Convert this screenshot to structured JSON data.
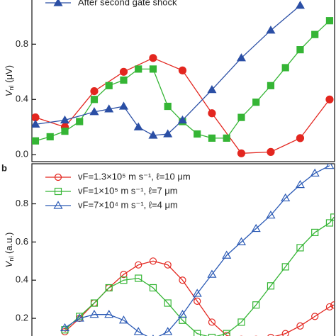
{
  "chart_data": [
    {
      "type": "line",
      "marker_fill": "filled",
      "ylabel": [
        "V",
        "nl",
        " (μV)"
      ],
      "xlim": [
        -0.12,
        10.17
      ],
      "ylim": [
        -0.05,
        1.13
      ],
      "yticks": [
        {
          "value": 0,
          "label": "0.0"
        },
        0.4,
        0.8
      ],
      "legend": "upper left",
      "series": [
        {
          "name": null,
          "color": "#e3261f",
          "marker": "circle",
          "x": [
            0,
            1,
            2,
            3,
            4,
            5,
            6,
            7,
            8,
            9,
            10
          ],
          "values": [
            0.27,
            0.2,
            0.46,
            0.6,
            0.7,
            0.61,
            0.3,
            0.01,
            0.02,
            0.12,
            0.4
          ]
        },
        {
          "name": null,
          "color": "#35b535",
          "marker": "square",
          "x": [
            0,
            0.5,
            1,
            1.5,
            2,
            2.5,
            3,
            3.5,
            4,
            4.5,
            5,
            5.5,
            6,
            6.5,
            7,
            7.5,
            8,
            8.5,
            9,
            9.5,
            10
          ],
          "values": [
            0.1,
            0.13,
            0.17,
            0.24,
            0.4,
            0.5,
            0.54,
            0.62,
            0.62,
            0.35,
            0.24,
            0.15,
            0.12,
            0.12,
            0.27,
            0.38,
            0.5,
            0.63,
            0.76,
            0.87,
            0.97
          ]
        },
        {
          "name": "After second gate shock",
          "color": "#2b4fa5",
          "marker": "triangle",
          "x": [
            0,
            1,
            2,
            2.5,
            3,
            3.5,
            4,
            4.5,
            5,
            6,
            7,
            8,
            9
          ],
          "values": [
            0.22,
            0.25,
            0.31,
            0.33,
            0.35,
            0.2,
            0.14,
            0.15,
            0.25,
            0.47,
            0.7,
            0.9,
            1.08
          ]
        }
      ]
    },
    {
      "type": "line",
      "marker_fill": "open",
      "panel": "b",
      "ylabel": [
        "V",
        "nl",
        " (a.u.)"
      ],
      "xlim": [
        -0.12,
        10.17
      ],
      "ylim": [
        0.1,
        1.01
      ],
      "yticks": [
        0.2,
        0.4,
        0.6,
        0.8
      ],
      "legend": "upper left",
      "series": [
        {
          "name": "vF=1.3×10⁵ m s⁻¹, ℓ=10 μm",
          "color": "#e3261f",
          "marker": "circle",
          "x": [
            1,
            1.5,
            2,
            2.5,
            3,
            3.5,
            4,
            4.5,
            5,
            5.5,
            6,
            6.5,
            7,
            7.5,
            8,
            8.5,
            9,
            9.5,
            10,
            10.15
          ],
          "values": [
            0.13,
            0.2,
            0.28,
            0.36,
            0.43,
            0.48,
            0.5,
            0.48,
            0.4,
            0.29,
            0.18,
            0.11,
            0.09,
            0.09,
            0.1,
            0.12,
            0.16,
            0.21,
            0.26,
            0.27
          ]
        },
        {
          "name": "vF=1×10⁵ m s⁻¹, ℓ=7 μm",
          "color": "#35b535",
          "marker": "square",
          "x": [
            1,
            1.5,
            2,
            2.5,
            3,
            3.5,
            4,
            4.5,
            5,
            5.5,
            6,
            6.5,
            7,
            7.5,
            8,
            8.5,
            9,
            9.5,
            10,
            10.15
          ],
          "values": [
            0.14,
            0.21,
            0.28,
            0.36,
            0.4,
            0.41,
            0.36,
            0.28,
            0.19,
            0.12,
            0.1,
            0.12,
            0.18,
            0.27,
            0.37,
            0.47,
            0.57,
            0.65,
            0.7,
            0.73
          ]
        },
        {
          "name": "vF=7×10⁴ m s⁻¹, ℓ=4 μm",
          "color": "#2b5ab5",
          "marker": "triangle",
          "x": [
            1,
            1.5,
            2,
            2.5,
            3,
            3.5,
            4,
            4.5,
            5,
            5.5,
            6,
            6.5,
            7,
            7.5,
            8,
            8.5,
            9,
            9.5,
            10
          ],
          "values": [
            0.15,
            0.2,
            0.22,
            0.22,
            0.19,
            0.13,
            0.09,
            0.13,
            0.22,
            0.33,
            0.43,
            0.53,
            0.6,
            0.67,
            0.74,
            0.83,
            0.9,
            0.96,
            1.0
          ]
        }
      ]
    }
  ]
}
